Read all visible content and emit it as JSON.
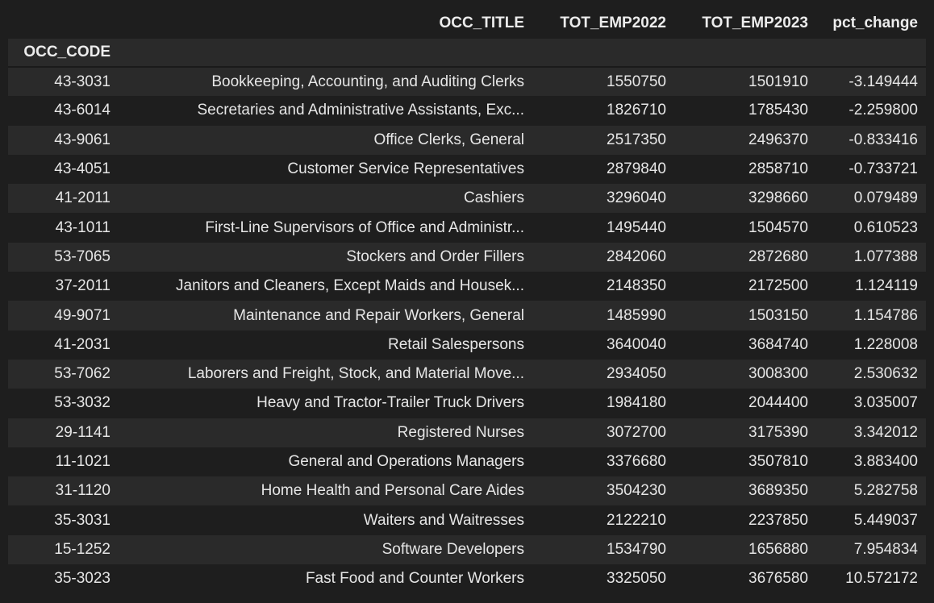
{
  "table": {
    "columns": [
      "OCC_TITLE",
      "TOT_EMP2022",
      "TOT_EMP2023",
      "pct_change"
    ],
    "index_name": "OCC_CODE",
    "rows": [
      {
        "code": "43-3031",
        "title": "Bookkeeping, Accounting, and Auditing Clerks",
        "emp2022": "1550750",
        "emp2023": "1501910",
        "pct": "-3.149444"
      },
      {
        "code": "43-6014",
        "title": "Secretaries and Administrative Assistants, Exc...",
        "emp2022": "1826710",
        "emp2023": "1785430",
        "pct": "-2.259800"
      },
      {
        "code": "43-9061",
        "title": "Office Clerks, General",
        "emp2022": "2517350",
        "emp2023": "2496370",
        "pct": "-0.833416"
      },
      {
        "code": "43-4051",
        "title": "Customer Service Representatives",
        "emp2022": "2879840",
        "emp2023": "2858710",
        "pct": "-0.733721"
      },
      {
        "code": "41-2011",
        "title": "Cashiers",
        "emp2022": "3296040",
        "emp2023": "3298660",
        "pct": "0.079489"
      },
      {
        "code": "43-1011",
        "title": "First-Line Supervisors of Office and Administr...",
        "emp2022": "1495440",
        "emp2023": "1504570",
        "pct": "0.610523"
      },
      {
        "code": "53-7065",
        "title": "Stockers and Order Fillers",
        "emp2022": "2842060",
        "emp2023": "2872680",
        "pct": "1.077388"
      },
      {
        "code": "37-2011",
        "title": "Janitors and Cleaners, Except Maids and Housek...",
        "emp2022": "2148350",
        "emp2023": "2172500",
        "pct": "1.124119"
      },
      {
        "code": "49-9071",
        "title": "Maintenance and Repair Workers, General",
        "emp2022": "1485990",
        "emp2023": "1503150",
        "pct": "1.154786"
      },
      {
        "code": "41-2031",
        "title": "Retail Salespersons",
        "emp2022": "3640040",
        "emp2023": "3684740",
        "pct": "1.228008"
      },
      {
        "code": "53-7062",
        "title": "Laborers and Freight, Stock, and Material Move...",
        "emp2022": "2934050",
        "emp2023": "3008300",
        "pct": "2.530632"
      },
      {
        "code": "53-3032",
        "title": "Heavy and Tractor-Trailer Truck Drivers",
        "emp2022": "1984180",
        "emp2023": "2044400",
        "pct": "3.035007"
      },
      {
        "code": "29-1141",
        "title": "Registered Nurses",
        "emp2022": "3072700",
        "emp2023": "3175390",
        "pct": "3.342012"
      },
      {
        "code": "11-1021",
        "title": "General and Operations Managers",
        "emp2022": "3376680",
        "emp2023": "3507810",
        "pct": "3.883400"
      },
      {
        "code": "31-1120",
        "title": "Home Health and Personal Care Aides",
        "emp2022": "3504230",
        "emp2023": "3689350",
        "pct": "5.282758"
      },
      {
        "code": "35-3031",
        "title": "Waiters and Waitresses",
        "emp2022": "2122210",
        "emp2023": "2237850",
        "pct": "5.449037"
      },
      {
        "code": "15-1252",
        "title": "Software Developers",
        "emp2022": "1534790",
        "emp2023": "1656880",
        "pct": "7.954834"
      },
      {
        "code": "35-3023",
        "title": "Fast Food and Counter Workers",
        "emp2022": "3325050",
        "emp2023": "3676580",
        "pct": "10.572172"
      }
    ]
  },
  "colors": {
    "background": "#1e1e1e",
    "stripe": "#2a2a2a",
    "text": "#e6e6e6"
  }
}
